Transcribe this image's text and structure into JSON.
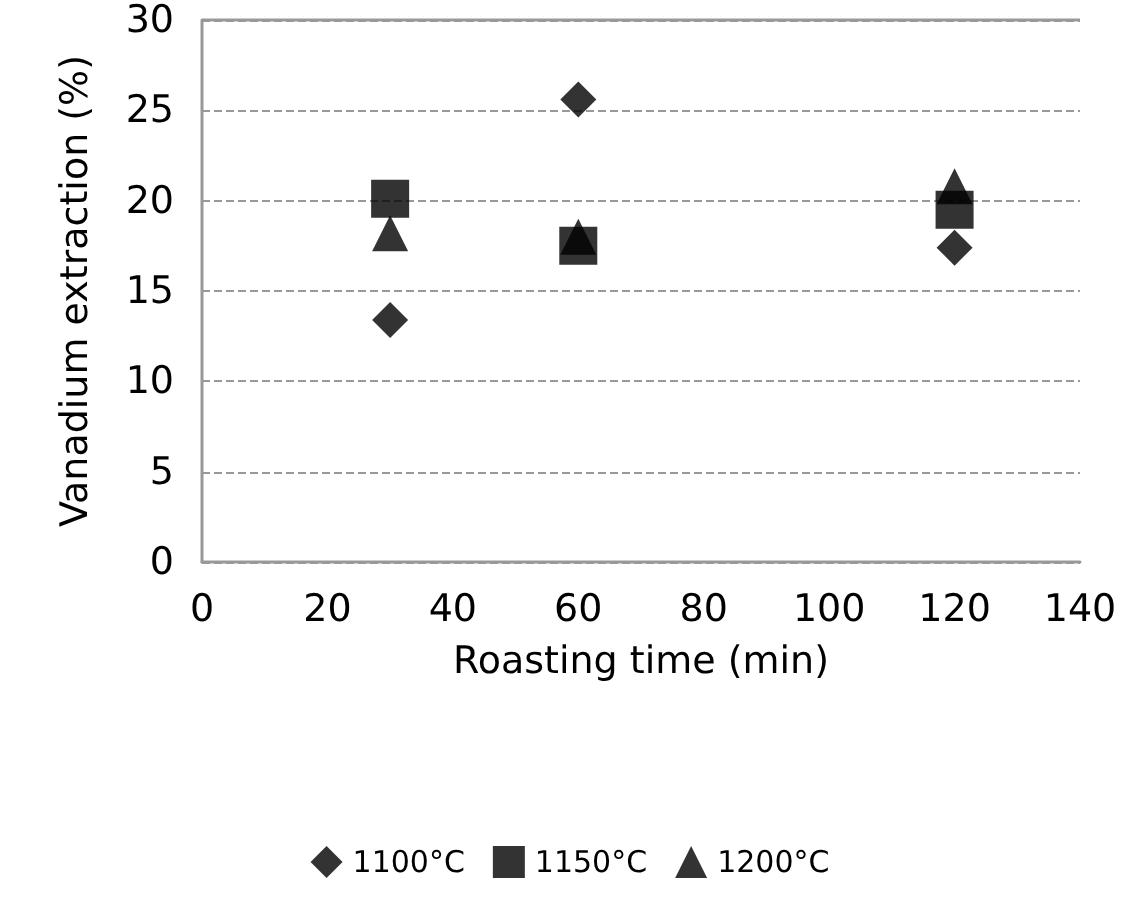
{
  "chart_data": {
    "type": "scatter",
    "xlabel": "Roasting time (min)",
    "ylabel": "Vanadium extraction (%)",
    "x": [
      30,
      60,
      120
    ],
    "series": [
      {
        "name": "1100°C",
        "color": "#000000",
        "marker": "diamond",
        "values": [
          13.4,
          25.6,
          17.4
        ]
      },
      {
        "name": "1150°C",
        "color": "#000000",
        "marker": "square",
        "values": [
          20.1,
          17.5,
          19.5
        ]
      },
      {
        "name": "1200°C",
        "color": "#000000",
        "marker": "triangle",
        "values": [
          18.2,
          18,
          20.8
        ]
      }
    ],
    "xlim": [
      0,
      140
    ],
    "xticks": [
      0,
      20,
      40,
      60,
      80,
      100,
      120,
      140
    ],
    "ylim": [
      0,
      30
    ],
    "yticks": [
      0,
      5,
      10,
      15,
      20,
      25,
      30
    ],
    "grid": "y",
    "legend": "bottom"
  }
}
